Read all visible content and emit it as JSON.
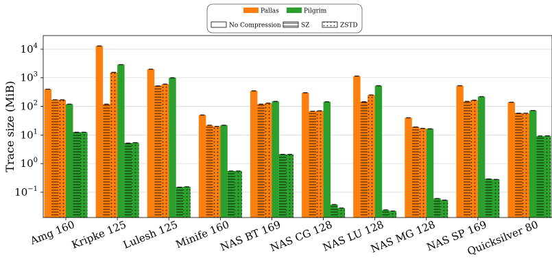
{
  "chart_data": {
    "type": "bar",
    "ylabel": "Trace size (MiB)",
    "yscale": "log",
    "ylim": [
      0.013,
      30000
    ],
    "grid": "y-major",
    "legend_position": "top-center",
    "legend": {
      "series": [
        {
          "name": "Pallas",
          "color": "#ff7f0e"
        },
        {
          "name": "Pilgrim",
          "color": "#2ca02c"
        }
      ],
      "hatches": [
        {
          "name": "No Compression",
          "pattern": "none"
        },
        {
          "name": "SZ",
          "pattern": "horizontal-lines"
        },
        {
          "name": "ZSTD",
          "pattern": "dots"
        }
      ]
    },
    "yticks": [
      {
        "base": "10",
        "exp": "4",
        "value": 10000
      },
      {
        "base": "10",
        "exp": "3",
        "value": 1000
      },
      {
        "base": "10",
        "exp": "2",
        "value": 100
      },
      {
        "base": "10",
        "exp": "1",
        "value": 10
      },
      {
        "base": "10",
        "exp": "0",
        "value": 1
      },
      {
        "base": "10",
        "exp": "−1",
        "value": 0.1
      }
    ],
    "categories": [
      "Amg 160",
      "Kripke 125",
      "Lulesh 125",
      "Minife 160",
      "NAS BT 169",
      "NAS CG 128",
      "NAS LU 128",
      "NAS MG 128",
      "NAS SP 169",
      "Quicksilver 80"
    ],
    "series": [
      {
        "name": "Pallas No Compression",
        "tool": "Pallas",
        "hatch": "none",
        "values": [
          400,
          13000,
          2000,
          50,
          350,
          300,
          1150,
          40,
          530,
          140
        ]
      },
      {
        "name": "Pallas SZ",
        "tool": "Pallas",
        "hatch": "horizontal-lines",
        "values": [
          170,
          120,
          520,
          22,
          120,
          68,
          145,
          19,
          150,
          58
        ]
      },
      {
        "name": "Pallas ZSTD",
        "tool": "Pallas",
        "hatch": "dots",
        "values": [
          170,
          1550,
          600,
          20,
          130,
          70,
          250,
          17,
          165,
          58
        ]
      },
      {
        "name": "Pilgrim No Compression",
        "tool": "Pilgrim",
        "hatch": "none",
        "values": [
          120,
          2900,
          1000,
          22,
          150,
          145,
          530,
          16.5,
          220,
          72
        ]
      },
      {
        "name": "Pilgrim SZ",
        "tool": "Pilgrim",
        "hatch": "horizontal-lines",
        "values": [
          12.5,
          5.2,
          0.15,
          0.55,
          2.1,
          0.037,
          0.024,
          0.06,
          0.29,
          9.2
        ]
      },
      {
        "name": "Pilgrim ZSTD",
        "tool": "Pilgrim",
        "hatch": "dots",
        "values": [
          12.5,
          5.4,
          0.155,
          0.55,
          2.1,
          0.028,
          0.022,
          0.053,
          0.28,
          9.3
        ]
      }
    ]
  }
}
